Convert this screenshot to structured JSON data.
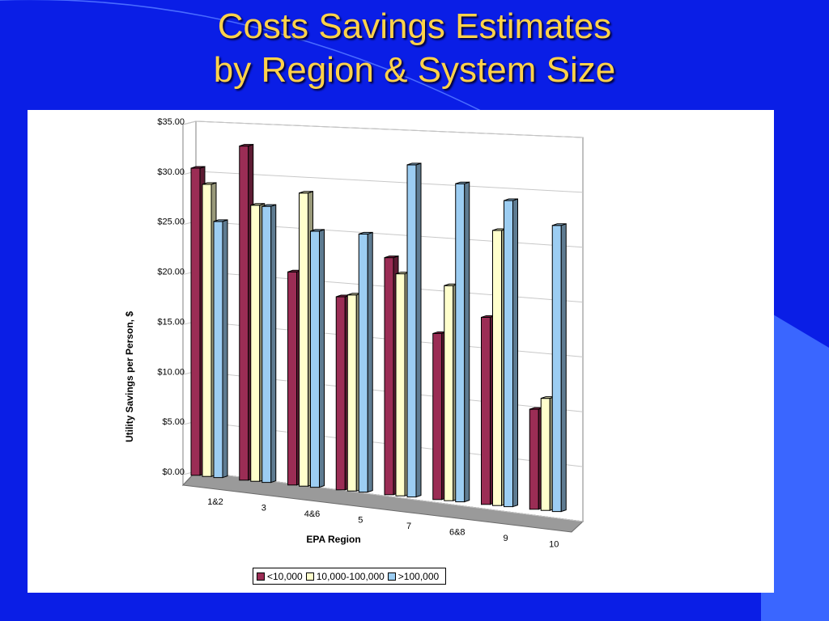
{
  "slide": {
    "title_line1": "Costs Savings Estimates",
    "title_line2": "by Region & System Size"
  },
  "colors": {
    "background": "#0a1ee6",
    "title": "#ffd24a",
    "series": [
      "#9b2d55",
      "#ffffcc",
      "#9ccdf2"
    ]
  },
  "chart_data": {
    "type": "bar",
    "title": "",
    "xlabel": "EPA Region",
    "ylabel": "Utility Savings per Person, $",
    "ylim": [
      0,
      35
    ],
    "y_tick_labels": [
      "$0.00",
      "$5.00",
      "$10.00",
      "$15.00",
      "$20.00",
      "$25.00",
      "$30.00",
      "$35.00"
    ],
    "categories": [
      "1&2",
      "3",
      "4&6",
      "5",
      "7",
      "6&8",
      "9",
      "10"
    ],
    "series": [
      {
        "name": "<10,000",
        "values": [
          30.7,
          33.4,
          21.3,
          19.3,
          23.7,
          16.6,
          18.7,
          10.0
        ]
      },
      {
        "name": "10,000-100,000",
        "values": [
          29.2,
          27.6,
          29.3,
          19.6,
          22.2,
          21.5,
          27.5,
          11.2
        ]
      },
      {
        "name": ">100,000",
        "values": [
          25.6,
          27.6,
          25.6,
          25.8,
          33.2,
          31.8,
          30.6,
          28.6
        ]
      }
    ],
    "legend_position": "bottom",
    "grid": true
  }
}
